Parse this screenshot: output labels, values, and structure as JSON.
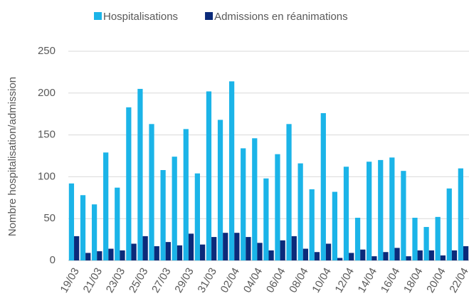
{
  "chart_data": {
    "type": "bar",
    "y_label": "Nombre hospitalisation/admission",
    "categories": [
      "19/03",
      null,
      "21/03",
      null,
      "23/03",
      null,
      "25/03",
      null,
      "27/03",
      null,
      "29/03",
      null,
      "31/03",
      null,
      "02/04",
      null,
      "04/04",
      null,
      "06/04",
      null,
      "08/04",
      null,
      "10/04",
      null,
      "12/04",
      null,
      "14/04",
      null,
      "16/04",
      null,
      "18/04",
      null,
      "20/04",
      null,
      "22/04"
    ],
    "series": [
      {
        "name": "Hospitalisations",
        "color": "#1bb4e8",
        "values": [
          92,
          78,
          67,
          129,
          87,
          183,
          205,
          163,
          108,
          124,
          157,
          104,
          202,
          168,
          214,
          134,
          146,
          98,
          127,
          163,
          116,
          85,
          176,
          82,
          112,
          51,
          118,
          120,
          123,
          107,
          51,
          40,
          52,
          86,
          110
        ]
      },
      {
        "name": "Admissions en réanimations",
        "color": "#0b2a7a",
        "values": [
          29,
          9,
          11,
          14,
          12,
          20,
          29,
          17,
          22,
          18,
          32,
          19,
          28,
          33,
          33,
          28,
          21,
          12,
          24,
          29,
          14,
          10,
          20,
          3,
          9,
          13,
          5,
          10,
          15,
          5,
          12,
          12,
          6,
          12,
          17
        ]
      }
    ],
    "ylim": [
      0,
      250
    ],
    "yticks": [
      0,
      50,
      100,
      150,
      200,
      250
    ],
    "grid": true,
    "legend": "top"
  }
}
